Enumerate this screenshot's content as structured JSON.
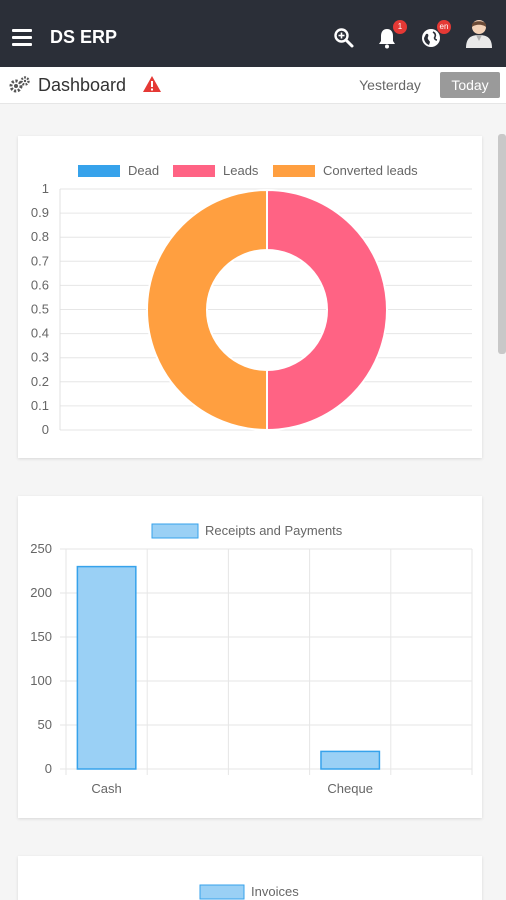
{
  "app": {
    "title": "DS ERP"
  },
  "header": {
    "notifications_badge": "1",
    "language_badge": "en"
  },
  "subheader": {
    "title": "Dashboard",
    "btn_yesterday": "Yesterday",
    "btn_today": "Today"
  },
  "icons": {
    "menu": "hamburger-menu-icon",
    "search": "search-icon",
    "bell": "bell-icon",
    "globe": "globe-icon",
    "user": "user-avatar-icon",
    "gear": "gears-icon",
    "warning": "warning-icon"
  },
  "colors": {
    "topbar": "#2b2f38",
    "dead": "#36a2eb",
    "leads": "#ff6384",
    "converted": "#ff9f40",
    "bar_fill": "#9ad0f5",
    "bar_stroke": "#36a2eb",
    "warning": "#e53935"
  },
  "chart_data": [
    {
      "type": "pie",
      "legend": [
        "Dead",
        "Leads",
        "Converted leads"
      ],
      "values": [
        0,
        1,
        1
      ],
      "colors": [
        "#36a2eb",
        "#ff6384",
        "#ff9f40"
      ],
      "y_ticks": [
        "1",
        "0.9",
        "0.8",
        "0.7",
        "0.6",
        "0.5",
        "0.4",
        "0.3",
        "0.2",
        "0.1",
        "0"
      ],
      "ylim": [
        0,
        1
      ],
      "grid": true,
      "legend_position": "top"
    },
    {
      "type": "bar",
      "series": [
        {
          "name": "Receipts and Payments",
          "values": [
            230,
            0,
            0,
            20,
            0
          ]
        }
      ],
      "categories": [
        "Cash",
        "",
        "",
        "Cheque",
        ""
      ],
      "x_tick_labels": [
        [
          "Cash",
          0
        ],
        [
          "Cheque",
          3
        ]
      ],
      "y_ticks": [
        "250",
        "200",
        "150",
        "100",
        "50",
        "0"
      ],
      "ylim": [
        0,
        250
      ],
      "grid": true,
      "legend_position": "top"
    },
    {
      "type": "bar",
      "series": [
        {
          "name": "Invoices",
          "values": []
        }
      ],
      "legend_position": "top"
    }
  ]
}
